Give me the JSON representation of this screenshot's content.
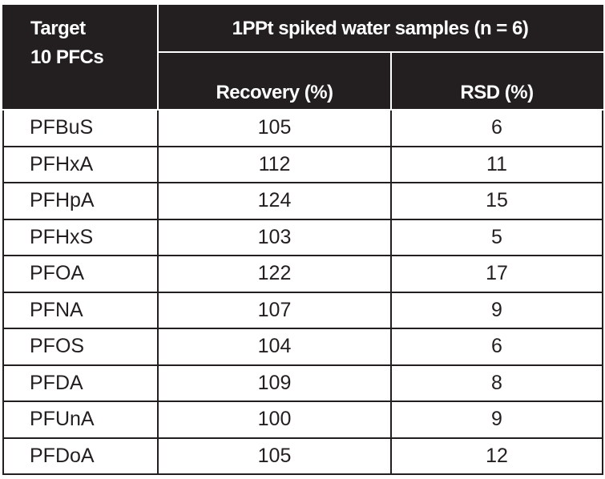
{
  "header": {
    "target_line1": "Target",
    "target_line2": "10 PFCs",
    "group_title": "1PPt spiked water samples (n = 6)",
    "recovery_label": "Recovery (%)",
    "rsd_label": "RSD (%)"
  },
  "rows": [
    {
      "name": "PFBuS",
      "recovery": "105",
      "rsd": "6"
    },
    {
      "name": "PFHxA",
      "recovery": "112",
      "rsd": "11"
    },
    {
      "name": "PFHpA",
      "recovery": "124",
      "rsd": "15"
    },
    {
      "name": "PFHxS",
      "recovery": "103",
      "rsd": "5"
    },
    {
      "name": "PFOA",
      "recovery": "122",
      "rsd": "17"
    },
    {
      "name": "PFNA",
      "recovery": "107",
      "rsd": "9"
    },
    {
      "name": "PFOS",
      "recovery": "104",
      "rsd": "6"
    },
    {
      "name": "PFDA",
      "recovery": "109",
      "rsd": "8"
    },
    {
      "name": "PFUnA",
      "recovery": "100",
      "rsd": "9"
    },
    {
      "name": "PFDoA",
      "recovery": "105",
      "rsd": "12"
    }
  ],
  "colors": {
    "header_bg": "#231f20",
    "header_text": "#ffffff",
    "body_text": "#231f20"
  }
}
